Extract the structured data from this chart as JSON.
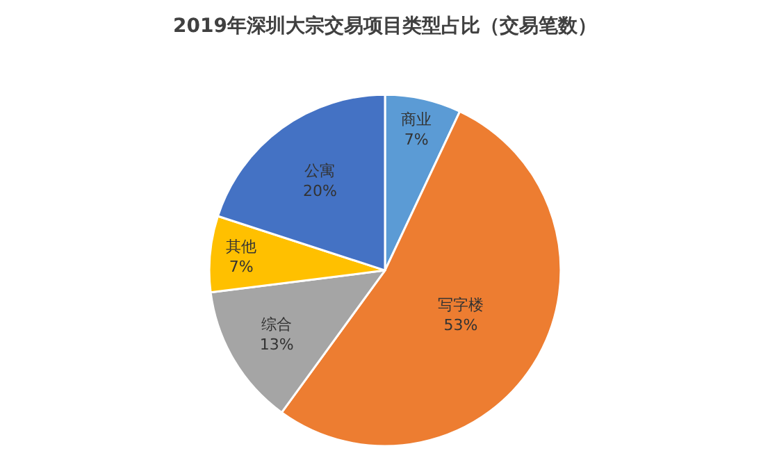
{
  "chart_data": {
    "type": "pie",
    "title": "2019年深圳大宗交易项目类型占比（交易笔数）",
    "categories": [
      "商业",
      "写字楼",
      "综合",
      "其他",
      "公寓"
    ],
    "values": [
      7,
      53,
      13,
      7,
      20
    ],
    "value_labels": [
      "7%",
      "53%",
      "13%",
      "7%",
      "20%"
    ],
    "colors": [
      "#5b9bd5",
      "#ed7d31",
      "#a5a5a5",
      "#ffc000",
      "#4472c4"
    ],
    "legend": false
  }
}
